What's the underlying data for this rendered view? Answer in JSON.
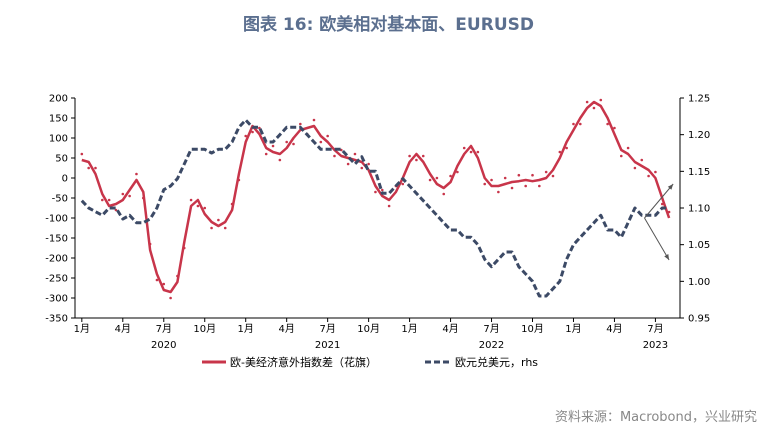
{
  "title": "图表 16: 欧美相对基本面、EURUSD",
  "source": "资料来源：Macrobond，兴业研究",
  "colors": {
    "red": "#c8354a",
    "blue": "#3c4a66",
    "grid": "#000000"
  },
  "chart_data": {
    "type": "line",
    "title": "图表 16: 欧美相对基本面、EURUSD",
    "x_tick_labels": [
      "1月",
      "4月",
      "7月",
      "10月",
      "1月",
      "4月",
      "7月",
      "10月",
      "1月",
      "4月",
      "7月",
      "10月",
      "1月",
      "4月",
      "7月"
    ],
    "x_tick_months": [
      0,
      3,
      6,
      9,
      12,
      15,
      18,
      21,
      24,
      27,
      30,
      33,
      36,
      39,
      42
    ],
    "years": [
      {
        "label": "2020",
        "center_month": 6
      },
      {
        "label": "2021",
        "center_month": 18
      },
      {
        "label": "2022",
        "center_month": 30
      },
      {
        "label": "2023",
        "center_month": 42
      }
    ],
    "x_range_months": [
      -0.5,
      43.8
    ],
    "y_left": {
      "range": [
        -350,
        200
      ],
      "ticks": [
        200,
        150,
        100,
        50,
        0,
        -50,
        -100,
        -150,
        -200,
        -250,
        -300,
        -350
      ]
    },
    "y_right": {
      "range": [
        0.95,
        1.25
      ],
      "ticks": [
        "1.25",
        "1.20",
        "1.15",
        "1.10",
        "1.05",
        "1.00",
        "0.95"
      ]
    },
    "series": [
      {
        "name": "欧-美经济意外指数差（花旗）",
        "axis": "left",
        "style": "solid",
        "color": "#c8354a",
        "x": [
          0,
          0.5,
          1,
          1.5,
          2,
          2.5,
          3,
          3.5,
          4,
          4.5,
          5,
          5.5,
          6,
          6.5,
          7,
          7.5,
          8,
          8.5,
          9,
          9.5,
          10,
          10.5,
          11,
          11.5,
          12,
          12.5,
          13,
          13.5,
          14,
          14.5,
          15,
          15.5,
          16,
          16.5,
          17,
          17.5,
          18,
          18.5,
          19,
          19.5,
          20,
          20.5,
          21,
          21.5,
          22,
          22.5,
          23,
          23.5,
          24,
          24.5,
          25,
          25.5,
          26,
          26.5,
          27,
          27.5,
          28,
          28.5,
          29,
          29.5,
          30,
          30.5,
          31,
          31.5,
          32,
          32.5,
          33,
          33.5,
          34,
          34.5,
          35,
          35.5,
          36,
          36.5,
          37,
          37.5,
          38,
          38.5,
          39,
          39.5,
          40,
          40.5,
          41,
          41.5,
          42,
          42.5,
          43
        ],
        "values": [
          45,
          40,
          10,
          -40,
          -70,
          -65,
          -55,
          -30,
          -5,
          -35,
          -180,
          -240,
          -280,
          -285,
          -260,
          -160,
          -70,
          -55,
          -90,
          -110,
          -120,
          -110,
          -80,
          10,
          90,
          130,
          110,
          75,
          65,
          60,
          75,
          100,
          120,
          125,
          130,
          105,
          90,
          70,
          55,
          50,
          45,
          40,
          20,
          -20,
          -45,
          -55,
          -35,
          0,
          40,
          60,
          40,
          10,
          -15,
          -25,
          -10,
          30,
          60,
          80,
          50,
          0,
          -20,
          -20,
          -15,
          -10,
          -8,
          -5,
          -8,
          -5,
          0,
          20,
          50,
          90,
          120,
          150,
          175,
          190,
          180,
          150,
          110,
          70,
          60,
          40,
          30,
          20,
          0,
          -50,
          -100
        ]
      },
      {
        "name": "欧元兑美元，rhs",
        "axis": "right",
        "style": "dashed",
        "color": "#3c4a66",
        "x": [
          0,
          0.5,
          1,
          1.5,
          2,
          2.5,
          3,
          3.5,
          4,
          4.5,
          5,
          5.5,
          6,
          6.5,
          7,
          7.5,
          8,
          8.5,
          9,
          9.5,
          10,
          10.5,
          11,
          11.5,
          12,
          12.5,
          13,
          13.5,
          14,
          14.5,
          15,
          15.5,
          16,
          16.5,
          17,
          17.5,
          18,
          18.5,
          19,
          19.5,
          20,
          20.5,
          21,
          21.5,
          22,
          22.5,
          23,
          23.5,
          24,
          24.5,
          25,
          25.5,
          26,
          26.5,
          27,
          27.5,
          28,
          28.5,
          29,
          29.5,
          30,
          30.5,
          31,
          31.5,
          32,
          32.5,
          33,
          33.5,
          34,
          34.5,
          35,
          35.5,
          36,
          36.5,
          37,
          37.5,
          38,
          38.5,
          39,
          39.5,
          40,
          40.5,
          41,
          41.5,
          42,
          42.5,
          43
        ],
        "values": [
          1.11,
          1.1,
          1.095,
          1.09,
          1.1,
          1.1,
          1.085,
          1.09,
          1.08,
          1.08,
          1.085,
          1.1,
          1.125,
          1.13,
          1.14,
          1.16,
          1.18,
          1.18,
          1.18,
          1.175,
          1.18,
          1.18,
          1.19,
          1.21,
          1.22,
          1.21,
          1.21,
          1.19,
          1.19,
          1.2,
          1.21,
          1.21,
          1.21,
          1.2,
          1.19,
          1.18,
          1.18,
          1.18,
          1.18,
          1.17,
          1.16,
          1.17,
          1.15,
          1.15,
          1.12,
          1.12,
          1.13,
          1.14,
          1.13,
          1.12,
          1.11,
          1.1,
          1.09,
          1.08,
          1.07,
          1.07,
          1.06,
          1.06,
          1.05,
          1.03,
          1.02,
          1.03,
          1.04,
          1.04,
          1.02,
          1.01,
          1.0,
          0.98,
          0.98,
          0.99,
          1.0,
          1.03,
          1.05,
          1.06,
          1.07,
          1.08,
          1.09,
          1.07,
          1.07,
          1.06,
          1.08,
          1.1,
          1.09,
          1.09,
          1.09,
          1.1,
          1.1
        ]
      }
    ],
    "annotation": "arrows pointing to opposite directions at end of series",
    "legend_position": "bottom"
  }
}
